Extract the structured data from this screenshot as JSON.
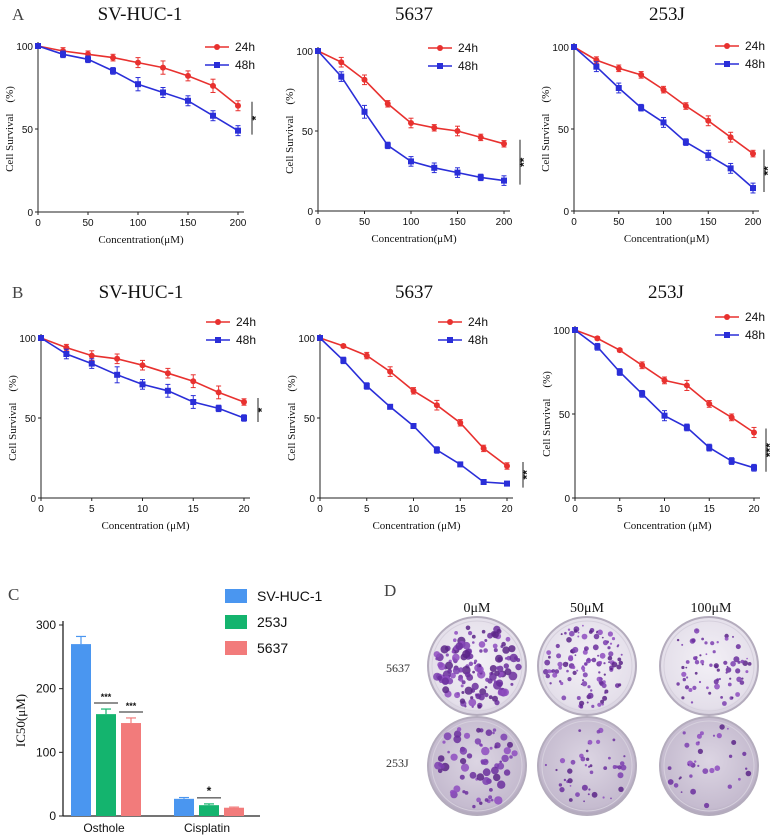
{
  "panel_letters": {
    "a": "A",
    "b": "B",
    "c": "C",
    "d": "D"
  },
  "colors": {
    "h24": "#e8312f",
    "h48": "#2a2ed8",
    "sv_huc1": "#4a96f0",
    "j253": "#14b46e",
    "c5637": "#f27b7b"
  },
  "chart_data": [
    {
      "id": "A1",
      "type": "line",
      "title": "SV-HUC-1",
      "xlabel": "Concentration(μM)",
      "ylabel": "Cell Survival　(%)",
      "xlim": [
        0,
        200
      ],
      "ylim": [
        0,
        100
      ],
      "xticks": [
        "0",
        "50",
        "100",
        "150",
        "200"
      ],
      "yticks": [
        "0",
        "50",
        "100"
      ],
      "x": [
        0,
        25,
        50,
        75,
        100,
        125,
        150,
        175,
        200
      ],
      "series": [
        {
          "name": "24h",
          "values": [
            100,
            97,
            95,
            93,
            90,
            87,
            82,
            76,
            64
          ],
          "errors": [
            1,
            2,
            2,
            2,
            3,
            4,
            3,
            4,
            3
          ]
        },
        {
          "name": "48h",
          "values": [
            100,
            95,
            92,
            85,
            77,
            72,
            67,
            58,
            49
          ],
          "errors": [
            1,
            2,
            2,
            2,
            4,
            3,
            3,
            3,
            3
          ]
        }
      ],
      "significance": "*"
    },
    {
      "id": "A2",
      "type": "line",
      "title": "5637",
      "xlabel": "Concentration(μM)",
      "ylabel": "Cell Survival　(%)",
      "xlim": [
        0,
        200
      ],
      "ylim": [
        0,
        100
      ],
      "xticks": [
        "0",
        "50",
        "100",
        "150",
        "200"
      ],
      "yticks": [
        "0",
        "50",
        "100"
      ],
      "x": [
        0,
        25,
        50,
        75,
        100,
        125,
        150,
        175,
        200
      ],
      "series": [
        {
          "name": "24h",
          "values": [
            100,
            93,
            82,
            67,
            55,
            52,
            50,
            46,
            42
          ],
          "errors": [
            1,
            3,
            3,
            2,
            3,
            2,
            3,
            2,
            2
          ]
        },
        {
          "name": "48h",
          "values": [
            100,
            84,
            62,
            41,
            31,
            27,
            24,
            21,
            19
          ],
          "errors": [
            1,
            3,
            4,
            2,
            3,
            3,
            3,
            2,
            3
          ]
        }
      ],
      "significance": "**"
    },
    {
      "id": "A3",
      "type": "line",
      "title": "253J",
      "xlabel": "Concentration(μM)",
      "ylabel": "Cell Survival　(%)",
      "xlim": [
        0,
        200
      ],
      "ylim": [
        0,
        100
      ],
      "xticks": [
        "0",
        "50",
        "100",
        "150",
        "200"
      ],
      "yticks": [
        "0",
        "50",
        "100"
      ],
      "x": [
        0,
        25,
        50,
        75,
        100,
        125,
        150,
        175,
        200
      ],
      "series": [
        {
          "name": "24h",
          "values": [
            100,
            92,
            87,
            83,
            74,
            64,
            55,
            45,
            35
          ],
          "errors": [
            1,
            2,
            2,
            2,
            2,
            2,
            3,
            3,
            2
          ]
        },
        {
          "name": "48h",
          "values": [
            100,
            88,
            75,
            63,
            54,
            42,
            34,
            26,
            14
          ],
          "errors": [
            1,
            3,
            3,
            2,
            3,
            2,
            3,
            3,
            3
          ]
        }
      ],
      "significance": "**"
    },
    {
      "id": "B1",
      "type": "line",
      "title": "SV-HUC-1",
      "xlabel": "Concentration (μM)",
      "ylabel": "Cell Survival　(%)",
      "xlim": [
        0,
        20
      ],
      "ylim": [
        0,
        100
      ],
      "xticks": [
        "0",
        "5",
        "10",
        "15",
        "20"
      ],
      "yticks": [
        "0",
        "50",
        "100"
      ],
      "x": [
        0,
        2.5,
        5,
        7.5,
        10,
        12.5,
        15,
        17.5,
        20
      ],
      "series": [
        {
          "name": "24h",
          "values": [
            100,
            94,
            89,
            87,
            83,
            78,
            73,
            66,
            60
          ],
          "errors": [
            1,
            2,
            3,
            3,
            3,
            3,
            4,
            4,
            2
          ]
        },
        {
          "name": "48h",
          "values": [
            100,
            90,
            84,
            77,
            71,
            67,
            60,
            56,
            50
          ],
          "errors": [
            1,
            3,
            3,
            5,
            3,
            4,
            4,
            2,
            2
          ]
        }
      ],
      "significance": "*"
    },
    {
      "id": "B2",
      "type": "line",
      "title": "5637",
      "xlabel": "Concentration (μM)",
      "ylabel": "Cell Survival　(%)",
      "xlim": [
        0,
        20
      ],
      "ylim": [
        0,
        100
      ],
      "xticks": [
        "0",
        "5",
        "10",
        "15",
        "20"
      ],
      "yticks": [
        "0",
        "50",
        "100"
      ],
      "x": [
        0,
        2.5,
        5,
        7.5,
        10,
        12.5,
        15,
        17.5,
        20
      ],
      "series": [
        {
          "name": "24h",
          "values": [
            100,
            95,
            89,
            79,
            67,
            58,
            47,
            31,
            20
          ],
          "errors": [
            1,
            1,
            2,
            3,
            2,
            3,
            2,
            2,
            2
          ]
        },
        {
          "name": "48h",
          "values": [
            100,
            86,
            70,
            57,
            45,
            30,
            21,
            10,
            9
          ],
          "errors": [
            1,
            2,
            2,
            1,
            1,
            2,
            1,
            1,
            1
          ]
        }
      ],
      "significance": "**"
    },
    {
      "id": "B3",
      "type": "line",
      "title": "253J",
      "xlabel": "Concentration (μM)",
      "ylabel": "Cell Survival　(%)",
      "xlim": [
        0,
        20
      ],
      "ylim": [
        0,
        100
      ],
      "xticks": [
        "0",
        "5",
        "10",
        "15",
        "20"
      ],
      "yticks": [
        "0",
        "50",
        "100"
      ],
      "x": [
        0,
        2.5,
        5,
        7.5,
        10,
        12.5,
        15,
        17.5,
        20
      ],
      "series": [
        {
          "name": "24h",
          "values": [
            100,
            95,
            88,
            79,
            70,
            67,
            56,
            48,
            39
          ],
          "errors": [
            1,
            1,
            1,
            2,
            2,
            3,
            2,
            2,
            3
          ]
        },
        {
          "name": "48h",
          "values": [
            100,
            90,
            75,
            62,
            49,
            42,
            30,
            22,
            18
          ],
          "errors": [
            1,
            2,
            2,
            2,
            3,
            2,
            2,
            2,
            2
          ]
        }
      ],
      "significance": "***"
    },
    {
      "id": "C",
      "type": "bar",
      "ylabel": "IC50(μM)",
      "ylim": [
        0,
        300
      ],
      "yticks": [
        "0",
        "100",
        "200",
        "300"
      ],
      "categories": [
        "Osthole",
        "Cisplatin"
      ],
      "series": [
        {
          "name": "SV-HUC-1",
          "values": [
            270,
            27
          ],
          "errors": [
            12,
            2
          ]
        },
        {
          "name": "253J",
          "values": [
            160,
            17
          ],
          "errors": [
            8,
            2
          ]
        },
        {
          "name": "5637",
          "values": [
            146,
            13
          ],
          "errors": [
            8,
            1
          ]
        }
      ],
      "significance": {
        "osthole_253J": "***",
        "osthole_5637": "***",
        "cisplatin_253J": "*"
      }
    }
  ],
  "legend": {
    "h24": "24h",
    "h48": "48h"
  },
  "panel_d": {
    "columns": [
      "0μM",
      "50μM",
      "100μM"
    ],
    "rows": [
      "5637",
      "253J"
    ]
  }
}
